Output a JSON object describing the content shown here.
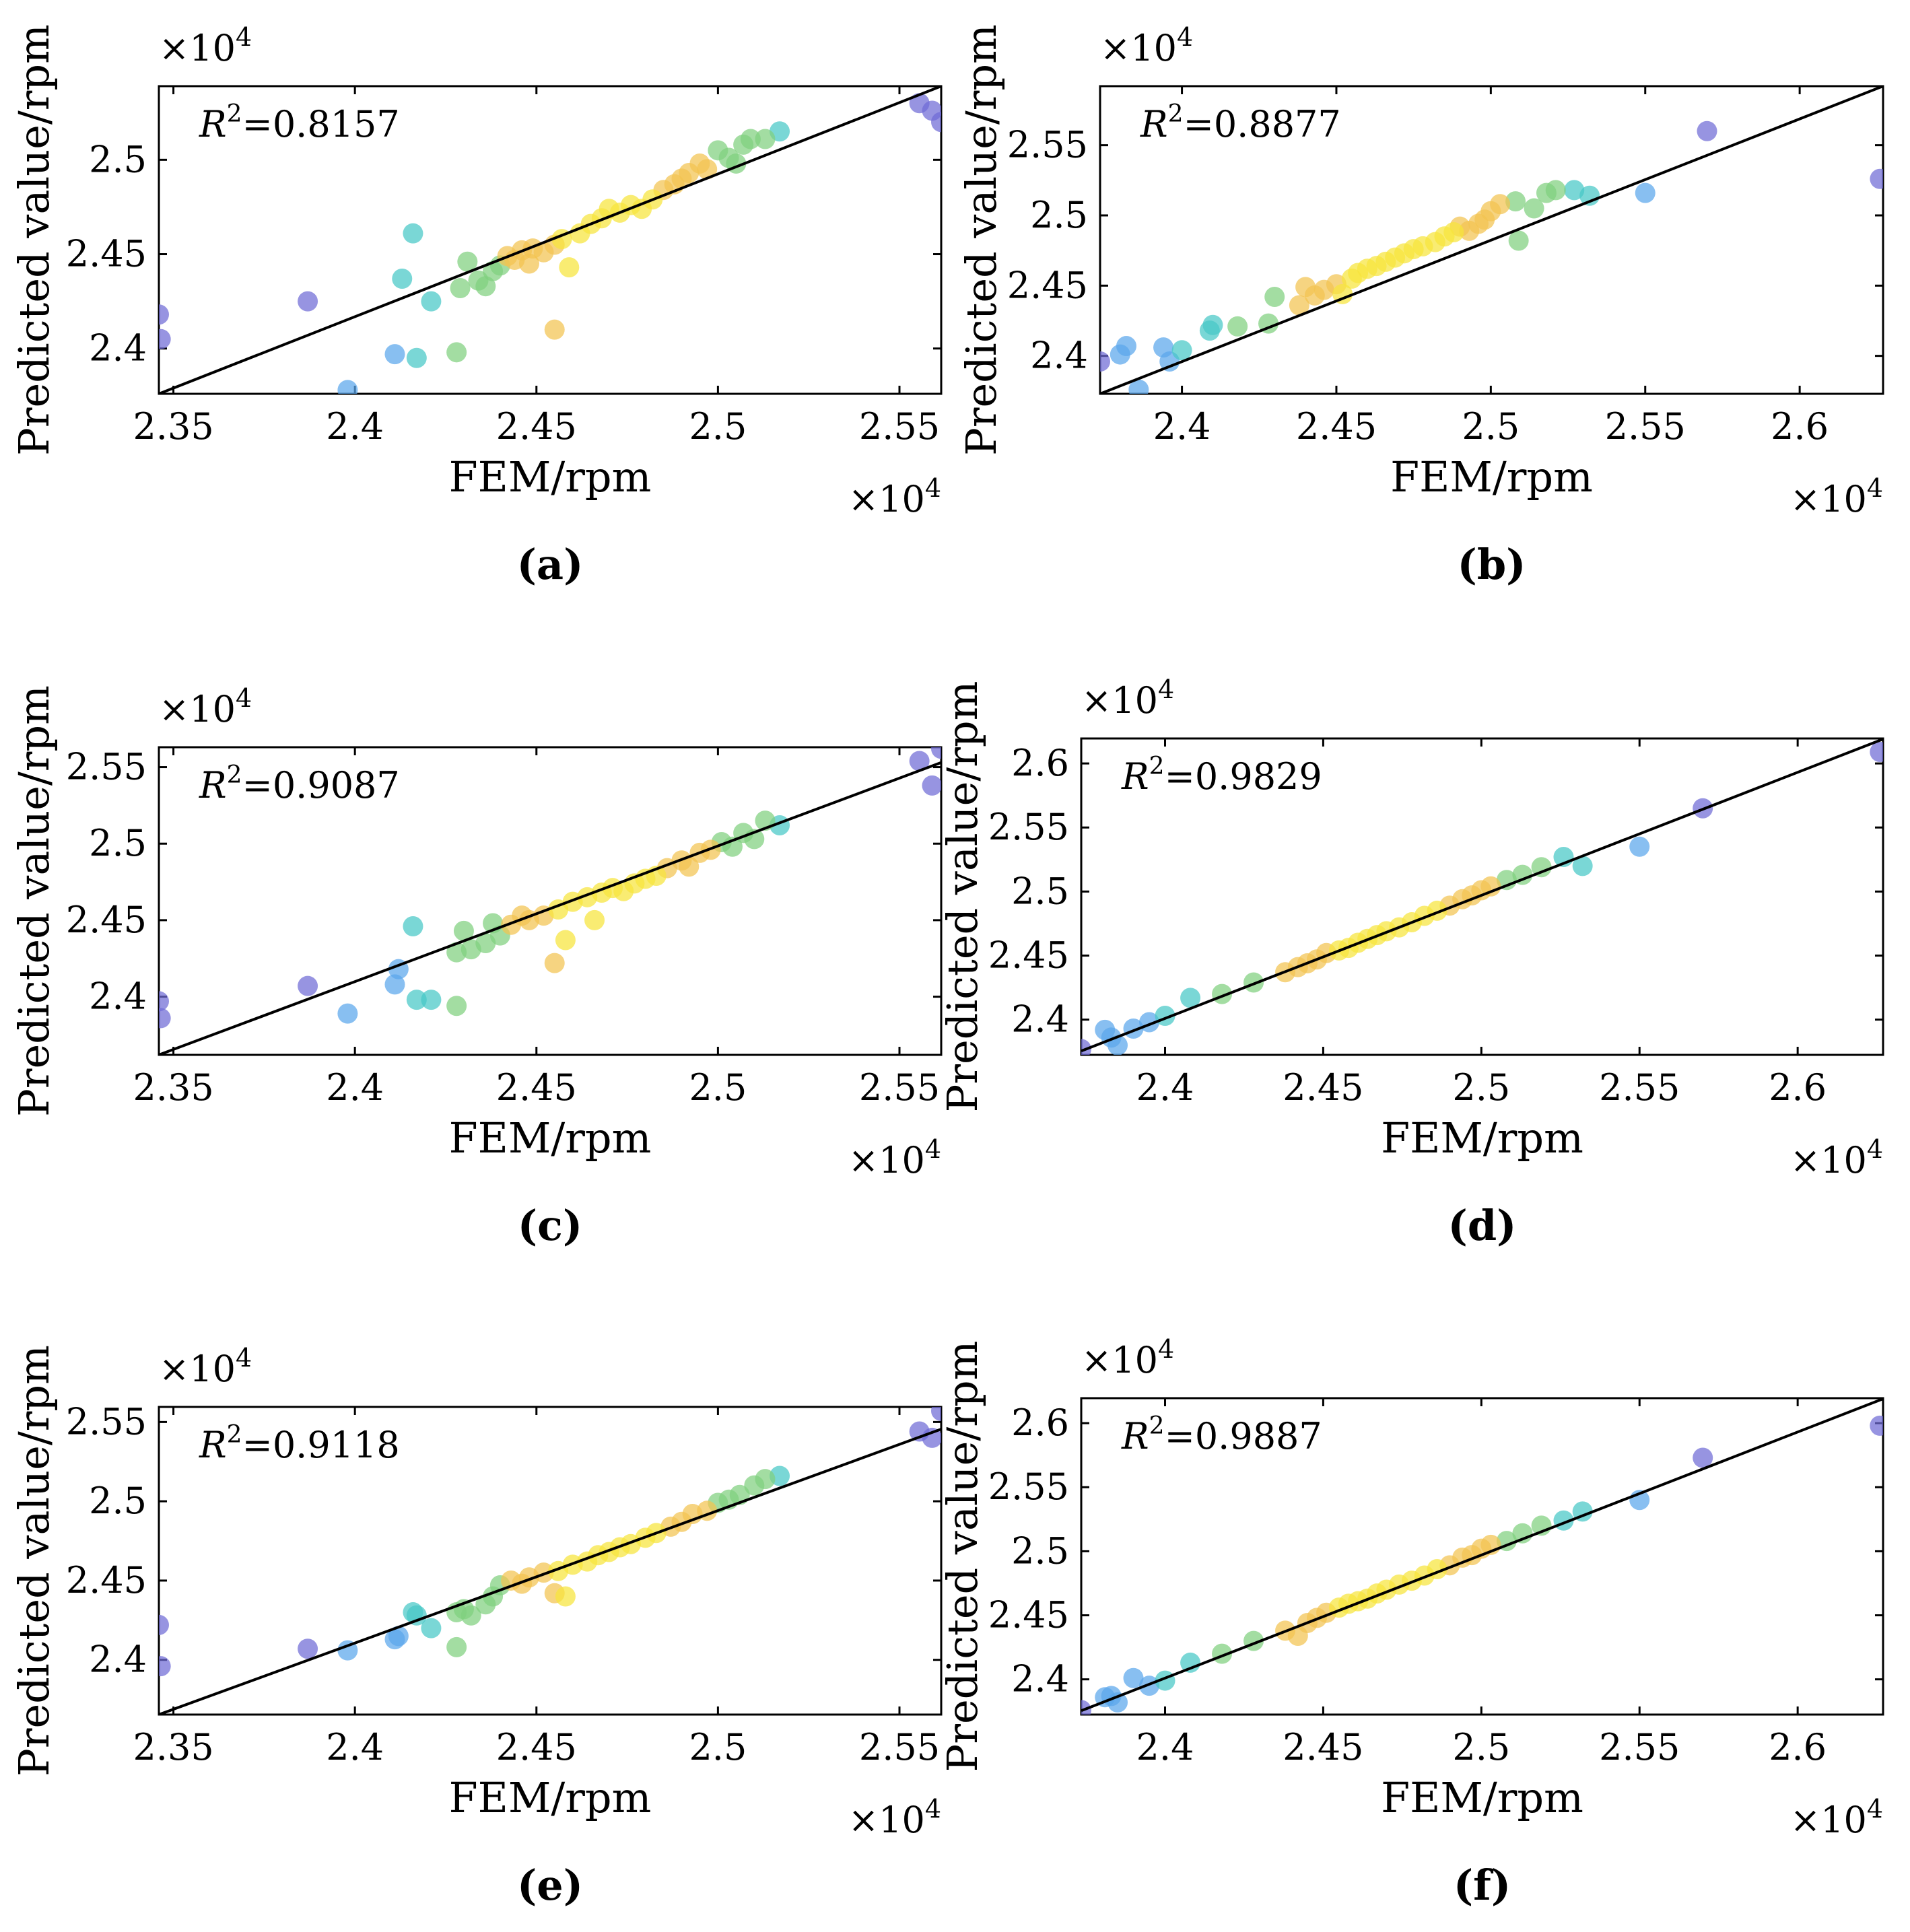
{
  "chart_data": [
    {
      "panel": "(a)",
      "type": "scatter",
      "xlabel": "FEM/rpm",
      "ylabel": "Predicted value/rpm",
      "x_multiplier": "×10",
      "y_multiplier": "×10",
      "exponent": "4",
      "r2_label": "R",
      "r2_text": "=0.8157",
      "xlim": [
        2.346,
        2.5615
      ],
      "ylim": [
        2.376,
        2.539
      ],
      "xticks": [
        "2.35",
        "2.4",
        "2.45",
        "2.5",
        "2.55"
      ],
      "yticks": [
        "2.4",
        "2.45",
        "2.5"
      ],
      "fit_line": [
        [
          2.346,
          2.376
        ],
        [
          2.5615,
          2.539
        ]
      ],
      "x": [
        2.346,
        2.3465,
        2.387,
        2.398,
        2.411,
        2.413,
        2.416,
        2.417,
        2.421,
        2.428,
        2.429,
        2.431,
        2.434,
        2.436,
        2.438,
        2.44,
        2.442,
        2.444,
        2.446,
        2.448,
        2.449,
        2.452,
        2.455,
        2.455,
        2.457,
        2.459,
        2.462,
        2.465,
        2.468,
        2.47,
        2.473,
        2.476,
        2.479,
        2.482,
        2.485,
        2.488,
        2.49,
        2.492,
        2.495,
        2.497,
        2.5,
        2.503,
        2.505,
        2.507,
        2.509,
        2.513,
        2.517,
        2.5555,
        2.559,
        2.5615
      ],
      "y": [
        2.418,
        2.405,
        2.425,
        2.378,
        2.397,
        2.437,
        2.461,
        2.395,
        2.425,
        2.398,
        2.432,
        2.446,
        2.436,
        2.433,
        2.441,
        2.444,
        2.449,
        2.447,
        2.452,
        2.445,
        2.453,
        2.451,
        2.455,
        2.41,
        2.458,
        2.443,
        2.461,
        2.466,
        2.469,
        2.474,
        2.472,
        2.476,
        2.474,
        2.479,
        2.484,
        2.487,
        2.49,
        2.493,
        2.498,
        2.495,
        2.505,
        2.501,
        2.498,
        2.508,
        2.511,
        2.511,
        2.515,
        2.53,
        2.526,
        2.52
      ]
    },
    {
      "panel": "(b)",
      "type": "scatter",
      "xlabel": "FEM/rpm",
      "ylabel": "Predicted value/rpm",
      "x_multiplier": "×10",
      "y_multiplier": "×10",
      "exponent": "4",
      "r2_label": "R",
      "r2_text": "=0.8877",
      "xlim": [
        2.3735,
        2.627
      ],
      "ylim": [
        2.373,
        2.592
      ],
      "xticks": [
        "2.4",
        "2.45",
        "2.5",
        "2.55",
        "2.6"
      ],
      "yticks": [
        "2.4",
        "2.45",
        "2.5",
        "2.55"
      ],
      "fit_line": [
        [
          2.3735,
          2.373
        ],
        [
          2.627,
          2.592
        ]
      ],
      "x": [
        2.3735,
        2.38,
        2.382,
        2.386,
        2.394,
        2.396,
        2.4,
        2.409,
        2.41,
        2.418,
        2.428,
        2.43,
        2.438,
        2.44,
        2.443,
        2.446,
        2.45,
        2.452,
        2.455,
        2.457,
        2.46,
        2.463,
        2.466,
        2.469,
        2.472,
        2.475,
        2.478,
        2.482,
        2.485,
        2.488,
        2.49,
        2.493,
        2.496,
        2.498,
        2.5,
        2.503,
        2.508,
        2.509,
        2.514,
        2.518,
        2.521,
        2.527,
        2.532,
        2.55,
        2.57,
        2.626
      ],
      "y": [
        2.396,
        2.401,
        2.407,
        2.376,
        2.406,
        2.396,
        2.404,
        2.418,
        2.422,
        2.421,
        2.423,
        2.442,
        2.436,
        2.449,
        2.443,
        2.447,
        2.451,
        2.444,
        2.455,
        2.459,
        2.462,
        2.464,
        2.467,
        2.47,
        2.473,
        2.476,
        2.478,
        2.481,
        2.485,
        2.488,
        2.492,
        2.489,
        2.494,
        2.497,
        2.503,
        2.508,
        2.51,
        2.482,
        2.505,
        2.516,
        2.518,
        2.518,
        2.514,
        2.516,
        2.56,
        2.526
      ]
    },
    {
      "panel": "(c)",
      "type": "scatter",
      "xlabel": "FEM/rpm",
      "ylabel": "Predicted value/rpm",
      "x_multiplier": "×10",
      "y_multiplier": "×10",
      "exponent": "4",
      "r2_label": "R",
      "r2_text": "=0.9087",
      "xlim": [
        2.346,
        2.5615
      ],
      "ylim": [
        2.362,
        2.563
      ],
      "xticks": [
        "2.35",
        "2.4",
        "2.45",
        "2.5",
        "2.55"
      ],
      "yticks": [
        "2.4",
        "2.45",
        "2.5",
        "2.55"
      ],
      "fit_line": [
        [
          2.346,
          2.362
        ],
        [
          2.5615,
          2.553
        ]
      ],
      "x": [
        2.346,
        2.3465,
        2.387,
        2.398,
        2.411,
        2.412,
        2.416,
        2.417,
        2.421,
        2.428,
        2.428,
        2.43,
        2.432,
        2.436,
        2.438,
        2.44,
        2.443,
        2.446,
        2.448,
        2.452,
        2.455,
        2.456,
        2.458,
        2.46,
        2.464,
        2.466,
        2.468,
        2.471,
        2.474,
        2.477,
        2.48,
        2.483,
        2.486,
        2.49,
        2.492,
        2.495,
        2.498,
        2.501,
        2.504,
        2.507,
        2.51,
        2.513,
        2.517,
        2.5555,
        2.559,
        2.5615
      ],
      "y": [
        2.397,
        2.386,
        2.407,
        2.389,
        2.408,
        2.418,
        2.446,
        2.398,
        2.398,
        2.394,
        2.429,
        2.443,
        2.431,
        2.435,
        2.448,
        2.44,
        2.447,
        2.453,
        2.45,
        2.453,
        2.422,
        2.457,
        2.437,
        2.462,
        2.465,
        2.45,
        2.468,
        2.471,
        2.469,
        2.474,
        2.477,
        2.479,
        2.484,
        2.489,
        2.485,
        2.494,
        2.496,
        2.501,
        2.498,
        2.507,
        2.503,
        2.515,
        2.512,
        2.554,
        2.538,
        2.562
      ]
    },
    {
      "panel": "(d)",
      "type": "scatter",
      "xlabel": "FEM/rpm",
      "ylabel": "Predicted value/rpm",
      "x_multiplier": "×10",
      "y_multiplier": "×10",
      "exponent": "4",
      "r2_label": "R",
      "r2_text": "=0.9829",
      "xlim": [
        2.3735,
        2.627
      ],
      "ylim": [
        2.3725,
        2.6195
      ],
      "xticks": [
        "2.4",
        "2.45",
        "2.5",
        "2.55",
        "2.6"
      ],
      "yticks": [
        "2.4",
        "2.45",
        "2.5",
        "2.55",
        "2.6"
      ],
      "fit_line": [
        [
          2.3735,
          2.3755
        ],
        [
          2.627,
          2.619
        ]
      ],
      "x": [
        2.3735,
        2.381,
        2.383,
        2.385,
        2.39,
        2.395,
        2.4,
        2.408,
        2.418,
        2.428,
        2.438,
        2.442,
        2.445,
        2.448,
        2.451,
        2.455,
        2.458,
        2.461,
        2.464,
        2.467,
        2.47,
        2.474,
        2.478,
        2.482,
        2.486,
        2.49,
        2.494,
        2.497,
        2.5,
        2.503,
        2.508,
        2.513,
        2.519,
        2.526,
        2.532,
        2.55,
        2.57,
        2.626
      ],
      "y": [
        2.377,
        2.392,
        2.386,
        2.38,
        2.393,
        2.398,
        2.403,
        2.417,
        2.42,
        2.429,
        2.437,
        2.441,
        2.444,
        2.447,
        2.452,
        2.454,
        2.456,
        2.46,
        2.463,
        2.466,
        2.469,
        2.472,
        2.476,
        2.481,
        2.485,
        2.489,
        2.494,
        2.497,
        2.501,
        2.504,
        2.509,
        2.513,
        2.519,
        2.527,
        2.52,
        2.535,
        2.565,
        2.609
      ]
    },
    {
      "panel": "(e)",
      "type": "scatter",
      "xlabel": "FEM/rpm",
      "ylabel": "Predicted value/rpm",
      "x_multiplier": "×10",
      "y_multiplier": "×10",
      "exponent": "4",
      "r2_label": "R",
      "r2_text": "=0.9118",
      "xlim": [
        2.346,
        2.5615
      ],
      "ylim": [
        2.3655,
        2.5595
      ],
      "xticks": [
        "2.35",
        "2.4",
        "2.45",
        "2.5",
        "2.55"
      ],
      "yticks": [
        "2.4",
        "2.45",
        "2.5",
        "2.55"
      ],
      "fit_line": [
        [
          2.346,
          2.3655
        ],
        [
          2.5615,
          2.5455
        ]
      ],
      "x": [
        2.346,
        2.3465,
        2.387,
        2.398,
        2.411,
        2.412,
        2.416,
        2.417,
        2.421,
        2.428,
        2.428,
        2.43,
        2.432,
        2.436,
        2.438,
        2.44,
        2.443,
        2.446,
        2.448,
        2.452,
        2.455,
        2.456,
        2.458,
        2.46,
        2.464,
        2.467,
        2.47,
        2.473,
        2.476,
        2.48,
        2.483,
        2.487,
        2.49,
        2.493,
        2.497,
        2.5,
        2.503,
        2.506,
        2.51,
        2.513,
        2.517,
        2.5555,
        2.559,
        2.5615
      ],
      "y": [
        2.422,
        2.396,
        2.407,
        2.406,
        2.413,
        2.415,
        2.43,
        2.428,
        2.42,
        2.408,
        2.43,
        2.432,
        2.428,
        2.435,
        2.44,
        2.447,
        2.45,
        2.448,
        2.452,
        2.455,
        2.442,
        2.456,
        2.44,
        2.46,
        2.462,
        2.466,
        2.468,
        2.471,
        2.473,
        2.477,
        2.48,
        2.484,
        2.487,
        2.492,
        2.494,
        2.499,
        2.501,
        2.504,
        2.51,
        2.514,
        2.516,
        2.544,
        2.54,
        2.557
      ]
    },
    {
      "panel": "(f)",
      "type": "scatter",
      "xlabel": "FEM/rpm",
      "ylabel": "Predicted value/rpm",
      "x_multiplier": "×10",
      "y_multiplier": "×10",
      "exponent": "4",
      "r2_label": "R",
      "r2_text": "=0.9887",
      "xlim": [
        2.3735,
        2.627
      ],
      "ylim": [
        2.3725,
        2.6195
      ],
      "xticks": [
        "2.4",
        "2.45",
        "2.5",
        "2.55",
        "2.6"
      ],
      "yticks": [
        "2.4",
        "2.45",
        "2.5",
        "2.55",
        "2.6"
      ],
      "fit_line": [
        [
          2.3735,
          2.3755
        ],
        [
          2.627,
          2.619
        ]
      ],
      "x": [
        2.3735,
        2.381,
        2.383,
        2.385,
        2.39,
        2.395,
        2.4,
        2.408,
        2.418,
        2.428,
        2.438,
        2.442,
        2.445,
        2.448,
        2.451,
        2.455,
        2.458,
        2.461,
        2.464,
        2.467,
        2.47,
        2.474,
        2.478,
        2.482,
        2.486,
        2.49,
        2.494,
        2.497,
        2.5,
        2.503,
        2.508,
        2.513,
        2.519,
        2.526,
        2.532,
        2.55,
        2.57,
        2.626
      ],
      "y": [
        2.376,
        2.386,
        2.387,
        2.382,
        2.401,
        2.395,
        2.399,
        2.413,
        2.42,
        2.43,
        2.438,
        2.434,
        2.444,
        2.448,
        2.452,
        2.456,
        2.459,
        2.461,
        2.463,
        2.467,
        2.47,
        2.474,
        2.477,
        2.481,
        2.486,
        2.489,
        2.495,
        2.497,
        2.502,
        2.505,
        2.508,
        2.514,
        2.52,
        2.524,
        2.531,
        2.54,
        2.573,
        2.598
      ]
    }
  ]
}
